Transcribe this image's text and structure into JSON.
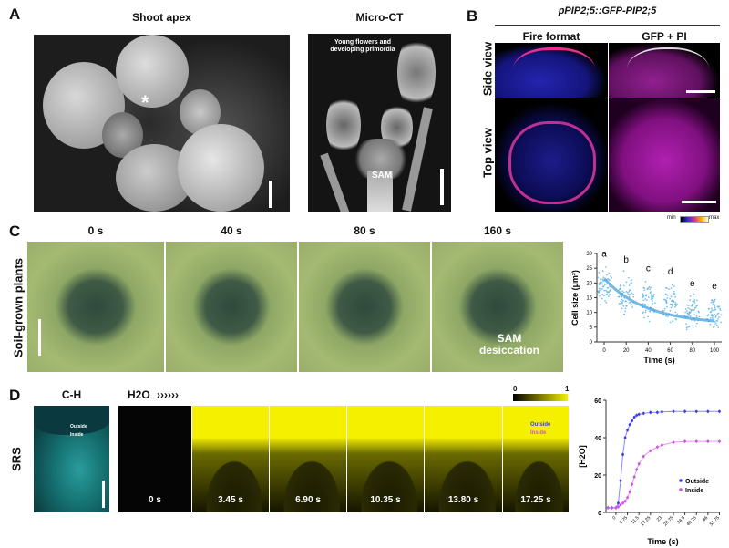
{
  "panelA": {
    "label": "A",
    "title_left": "Shoot apex",
    "title_right": "Micro-CT",
    "asterisk": "*",
    "annot_primordia": "Young flowers and developing primordia",
    "annot_sam": "SAM"
  },
  "panelB": {
    "label": "B",
    "title": "pPIP2;5::GFP-PIP2;5",
    "col1": "Fire format",
    "col2": "GFP + PI",
    "row1": "Side view",
    "row2": "Top view",
    "cbar_min": "min",
    "cbar_max": "max"
  },
  "panelC": {
    "label": "C",
    "row_label": "Soil-grown plants",
    "times": [
      "0 s",
      "40 s",
      "80 s",
      "160 s"
    ],
    "annot": "SAM desiccation"
  },
  "panelD": {
    "label": "D",
    "ch_title": "C-H",
    "h2o_title": "H2O",
    "arrows": "››››››",
    "row_label": "SRS",
    "legend_outside": "Outside",
    "legend_inside": "Inside",
    "cbar_min": "0",
    "cbar_max": "1",
    "times": [
      "0 s",
      "3.45 s",
      "6.90 s",
      "10.35 s",
      "13.80 s",
      "17.25 s"
    ]
  },
  "colors": {
    "outside": "#3b3bf5",
    "inside": "#d050e8",
    "cellsize": "#5ab4e6",
    "soil": "#9fb56a",
    "srs_yellow": "#f5f000",
    "ch_cyan": "#2aa8a8"
  },
  "chart_data": [
    {
      "type": "scatter",
      "ylabel": "Cell size (µm²)",
      "xlabel": "Time (s)",
      "categories": [
        0,
        20,
        40,
        60,
        80,
        100
      ],
      "means": [
        21.5,
        15.5,
        12,
        10,
        8.3,
        7
      ],
      "ranges": [
        [
          11,
          28
        ],
        [
          7,
          26
        ],
        [
          5,
          23
        ],
        [
          4,
          22
        ],
        [
          3,
          18
        ],
        [
          3,
          17
        ]
      ],
      "letters": [
        "a",
        "b",
        "c",
        "d",
        "e",
        "e"
      ],
      "ylim": [
        0,
        30
      ],
      "yticks": [
        0,
        5,
        10,
        15,
        20,
        25,
        30
      ],
      "fit": "exponential decay",
      "grid": false
    },
    {
      "type": "line",
      "ylabel": "[H2O]",
      "xlabel": "Time (s)",
      "xticks": [
        "0",
        "5.75",
        "11.5",
        "17.25",
        "23",
        "28.75",
        "34.5",
        "40.25",
        "46",
        "51.75"
      ],
      "ylim": [
        0,
        60
      ],
      "yticks": [
        0,
        20,
        40,
        60
      ],
      "legend": "bottom-right",
      "x": [
        -4,
        -2,
        0,
        1.15,
        2.3,
        3.45,
        4.6,
        5.75,
        6.9,
        8.05,
        9.2,
        10.35,
        11.5,
        13.8,
        17.25,
        20.7,
        23,
        28.75,
        34.5,
        40.25,
        46,
        51.75
      ],
      "series": [
        {
          "name": "Outside",
          "values": [
            2.5,
            2.5,
            2.5,
            5,
            17,
            31,
            40,
            44,
            47,
            49,
            51,
            52,
            52.5,
            53,
            53.5,
            53.5,
            53.8,
            54,
            54,
            54,
            54,
            54
          ]
        },
        {
          "name": "Inside",
          "values": [
            2.5,
            2.5,
            2.5,
            3,
            4,
            5,
            6,
            8,
            11,
            15,
            19,
            23,
            26,
            30,
            33,
            35,
            36,
            37.5,
            38,
            38,
            38,
            38
          ]
        }
      ]
    }
  ]
}
